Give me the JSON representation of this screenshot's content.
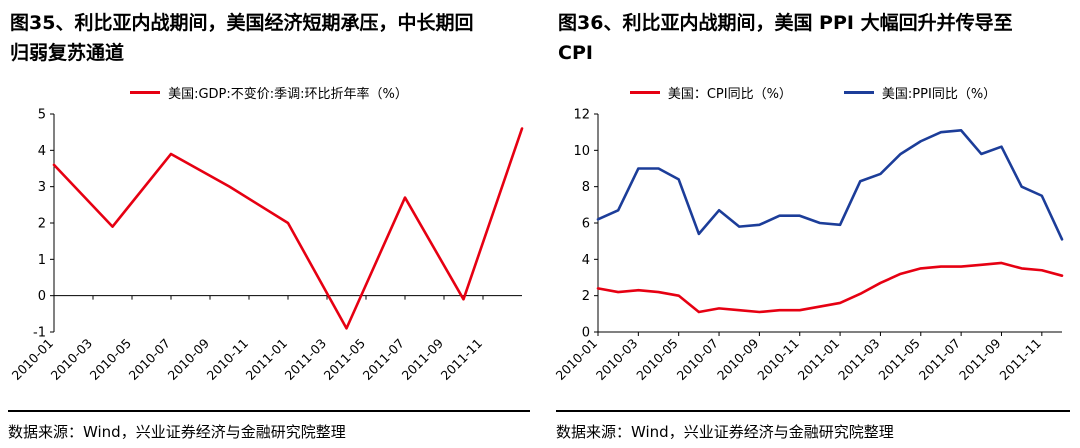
{
  "figures": [
    {
      "title": "图35、利比亚内战期间，美国经济短期承压，中长期回归弱复苏通道",
      "legend": [
        {
          "label": "美国:GDP:不变价:季调:环比折年率（%）",
          "color": "#e60012"
        }
      ],
      "source": "数据来源：Wind，兴业证券经济与金融研究院整理"
    },
    {
      "title": "图36、利比亚内战期间，美国 PPI 大幅回升并传导至 CPI",
      "legend": [
        {
          "label": "美国：CPI同比（%）",
          "color": "#e60012"
        },
        {
          "label": "美国:PPI同比（%）",
          "color": "#1c3d99"
        }
      ],
      "source": "数据来源：Wind，兴业证券经济与金融研究院整理"
    }
  ],
  "colors": {
    "red_line": "#e60012",
    "blue_line": "#1c3d99",
    "axis": "#000000"
  },
  "chart_data": [
    {
      "type": "line",
      "title": "图35、利比亚内战期间，美国经济短期承压，中长期回归弱复苏通道",
      "xlabel": "",
      "ylabel": "",
      "ylim": [
        -1,
        5
      ],
      "yticks": [
        -1,
        0,
        1,
        2,
        3,
        4,
        5
      ],
      "grid": false,
      "legend_position": "top-center",
      "x_tick_labels": [
        "2010-01",
        "2010-03",
        "2010-05",
        "2010-07",
        "2010-09",
        "2010-11",
        "2011-01",
        "2011-03",
        "2011-05",
        "2011-07",
        "2011-09",
        "2011-11"
      ],
      "x_tick_months": [
        0,
        2,
        4,
        6,
        8,
        10,
        12,
        14,
        16,
        18,
        20,
        22
      ],
      "x_max_month": 24,
      "series": [
        {
          "name": "美国:GDP:不变价:季调:环比折年率（%）",
          "color": "#e60012",
          "x": [
            "2010-01",
            "2010-04",
            "2010-07",
            "2010-10",
            "2011-01",
            "2011-04",
            "2011-07",
            "2011-10",
            "2012-01"
          ],
          "x_months": [
            0,
            3,
            6,
            9,
            12,
            15,
            18,
            21,
            24
          ],
          "values": [
            3.6,
            1.9,
            3.9,
            3.0,
            2.0,
            -0.9,
            2.7,
            -0.1,
            4.6
          ]
        }
      ]
    },
    {
      "type": "line",
      "title": "图36、利比亚内战期间，美国 PPI 大幅回升并传导至 CPI",
      "xlabel": "",
      "ylabel": "",
      "ylim": [
        0,
        12
      ],
      "yticks": [
        0,
        2,
        4,
        6,
        8,
        10,
        12
      ],
      "grid": false,
      "legend_position": "top-center",
      "x_tick_labels": [
        "2010-01",
        "2010-03",
        "2010-05",
        "2010-07",
        "2010-09",
        "2010-11",
        "2011-01",
        "2011-03",
        "2011-05",
        "2011-07",
        "2011-09",
        "2011-11"
      ],
      "x_tick_months": [
        0,
        2,
        4,
        6,
        8,
        10,
        12,
        14,
        16,
        18,
        20,
        22
      ],
      "x_max_month": 23,
      "series": [
        {
          "name": "美国：CPI同比（%）",
          "color": "#e60012",
          "x_start": "2010-01",
          "x_step_months": 1,
          "values": [
            2.4,
            2.2,
            2.3,
            2.2,
            2.0,
            1.1,
            1.3,
            1.2,
            1.1,
            1.2,
            1.2,
            1.4,
            1.6,
            2.1,
            2.7,
            3.2,
            3.5,
            3.6,
            3.6,
            3.7,
            3.8,
            3.5,
            3.4,
            3.1
          ]
        },
        {
          "name": "美国:PPI同比（%）",
          "color": "#1c3d99",
          "x_start": "2010-01",
          "x_step_months": 1,
          "values": [
            6.2,
            6.7,
            9.0,
            9.0,
            8.4,
            5.4,
            6.7,
            5.8,
            5.9,
            6.4,
            6.4,
            6.0,
            5.9,
            8.3,
            8.7,
            9.8,
            10.5,
            11.0,
            11.1,
            9.8,
            10.2,
            8.0,
            7.5,
            5.1
          ]
        }
      ]
    }
  ]
}
